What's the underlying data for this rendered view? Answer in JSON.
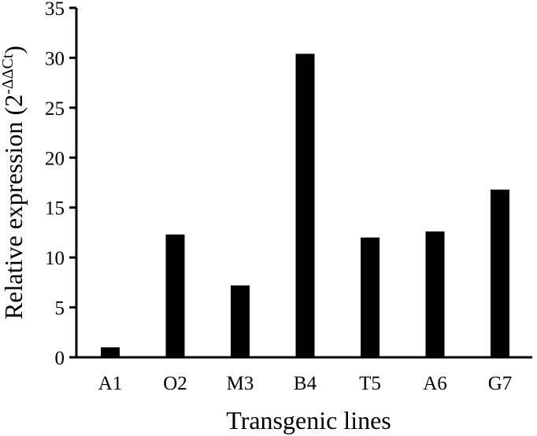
{
  "chart_data": {
    "type": "bar",
    "categories": [
      "A1",
      "O2",
      "M3",
      "B4",
      "T5",
      "A6",
      "G7"
    ],
    "values": [
      1.0,
      12.3,
      7.2,
      30.4,
      12.0,
      12.6,
      16.8
    ],
    "xlabel": "Transgenic lines",
    "ylabel": "Relative expression (2",
    "ylabel_superscript": "-ΔΔCt",
    "ylabel_close": ")",
    "ylim": [
      0,
      35
    ],
    "yticks": [
      0,
      5,
      10,
      15,
      20,
      25,
      30,
      35
    ],
    "bar_color": "#000000",
    "grid": false,
    "legend": "none"
  }
}
